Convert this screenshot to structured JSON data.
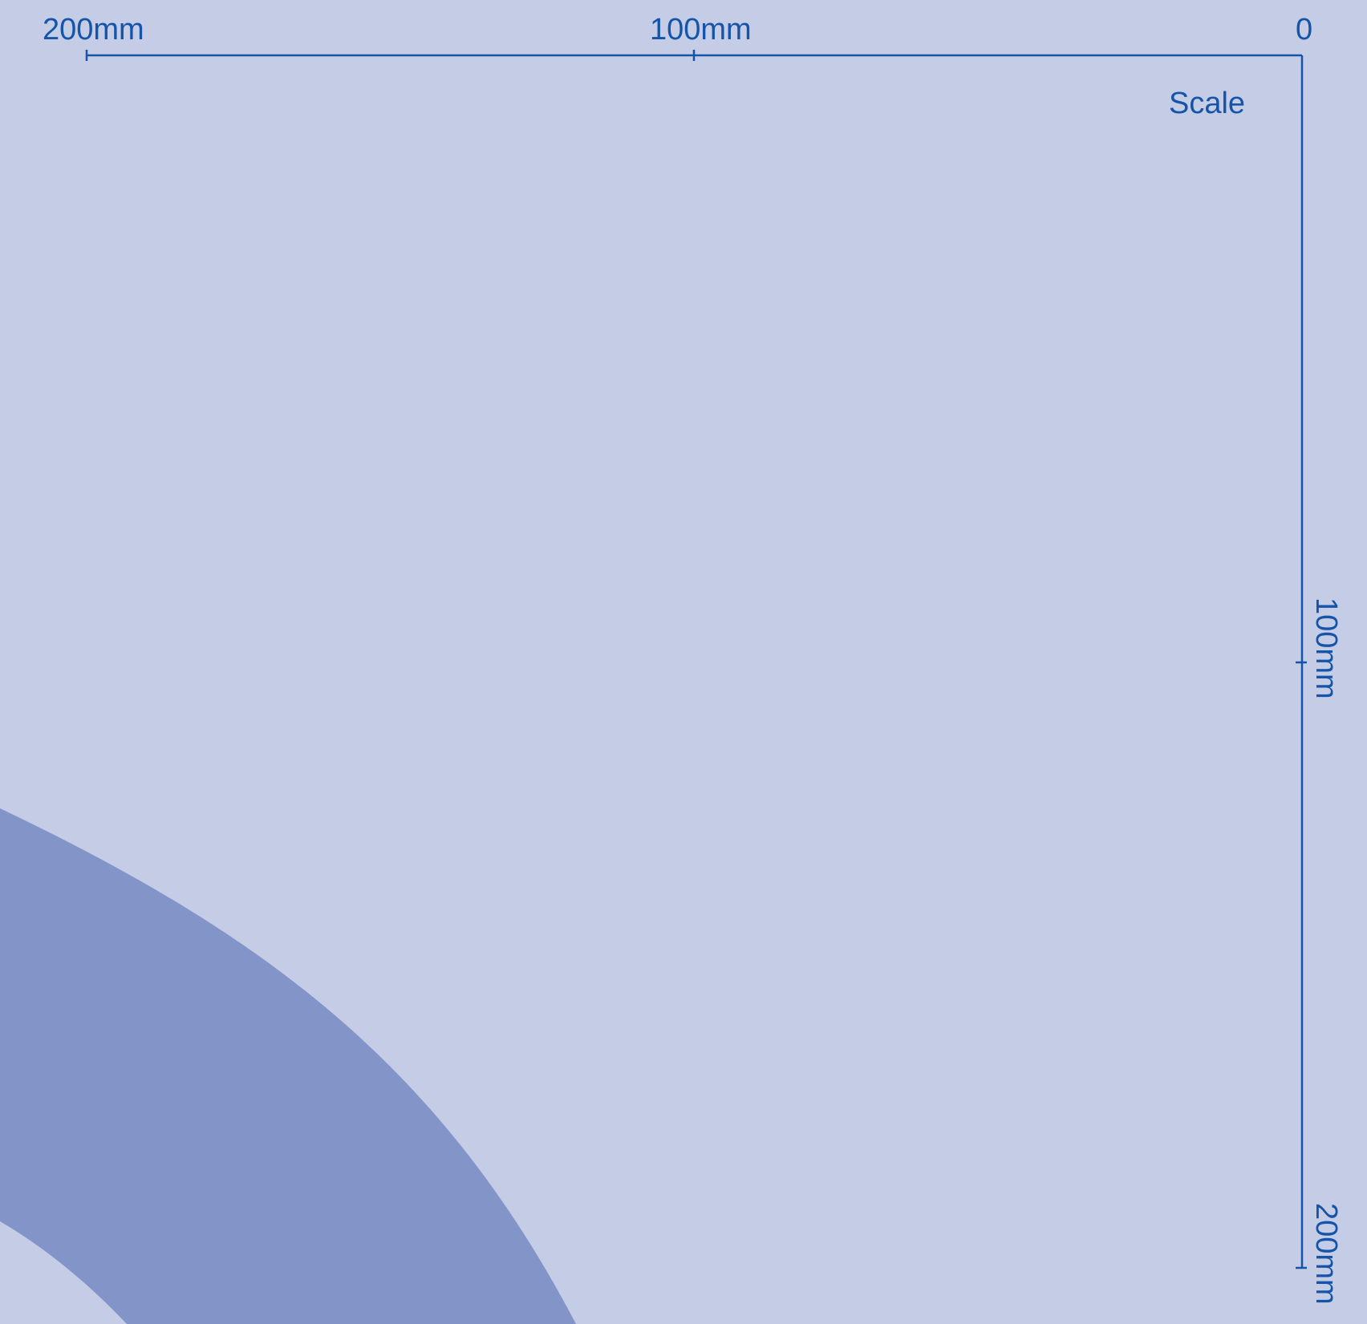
{
  "colors": {
    "background": "#c5cce6",
    "arc_band": "#8394c8",
    "ink": "#1554a8"
  },
  "scale": {
    "title": "Scale",
    "horizontal_ticks": [
      "0",
      "100mm",
      "200mm"
    ],
    "vertical_ticks": [
      "100mm",
      "200mm"
    ]
  }
}
